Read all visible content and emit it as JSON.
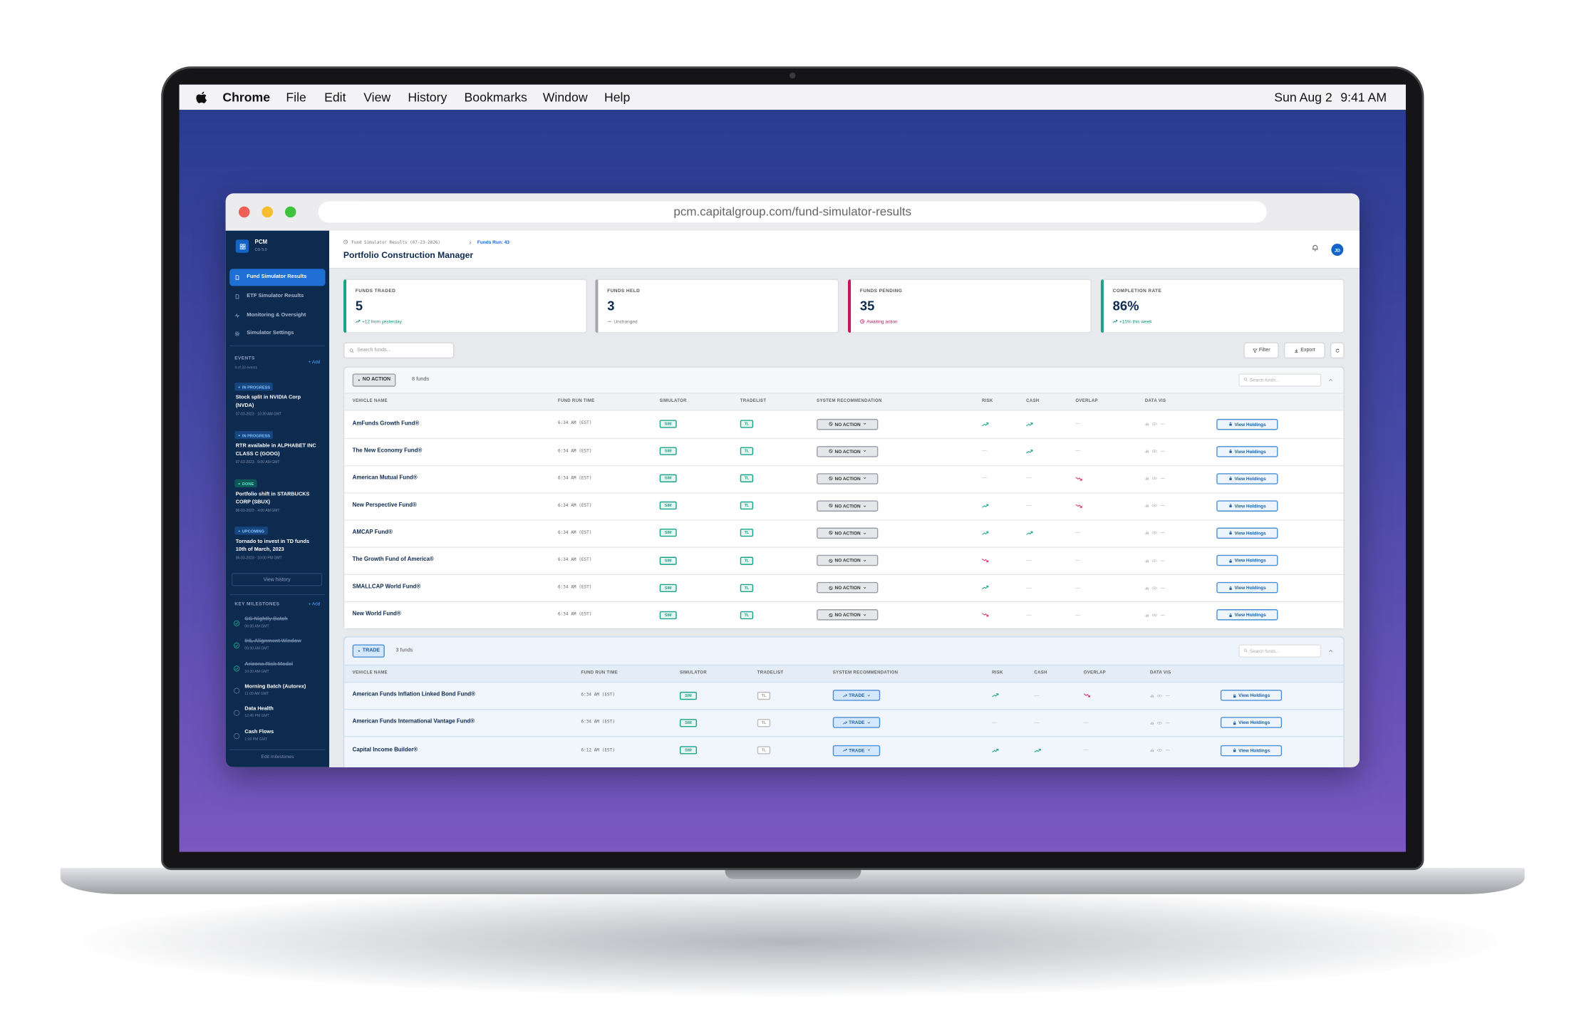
{
  "menubar": {
    "app": "Chrome",
    "menus": [
      "File",
      "Edit",
      "View",
      "History",
      "Bookmarks",
      "Window",
      "Help"
    ],
    "date": "Sun Aug 2",
    "time": "9:41 AM"
  },
  "browser": {
    "url": "pcm.capitalgroup.com/fund-simulator-results"
  },
  "sidebar": {
    "brand": "PCM",
    "version": "CG 5.0",
    "nav": [
      "Fund Simulator Results",
      "ETF Simulator Results",
      "Monitoring & Oversight",
      "Simulator Settings"
    ],
    "events": {
      "heading": "EVENTS",
      "add": "+ Add",
      "count": "4 of 33 events",
      "items": [
        {
          "status": "IN PROGRESS",
          "title": "Stock split in NVIDIA Corp (NVDA)",
          "date": "07-03-2023 · 10:30 AM GMT"
        },
        {
          "status": "IN PROGRESS",
          "title": "RTR available in ALPHABET INC CLASS C (GOOG)",
          "date": "07-03-2023 · 9:00 AM GMT"
        },
        {
          "status": "DONE",
          "title": "Portfolio shift in STARBUCKS CORP (SBUX)",
          "date": "06-03-2023 · 4:00 AM GMT"
        },
        {
          "status": "UPCOMING",
          "title": "Tornado to invest in TD funds 10th of March, 2023",
          "date": "06-03-2023 · 10:00 PM GMT"
        }
      ],
      "more": "View history"
    },
    "milestones": {
      "heading": "KEY MILESTONES",
      "add": "+ Add",
      "items": [
        {
          "title": "CG Nightly Batch",
          "time": "06:00 AM GMT",
          "done": true
        },
        {
          "title": "IHL Alignment Window",
          "time": "09:30 AM GMT",
          "done": true
        },
        {
          "title": "Arizona Risk Model",
          "time": "10:30 AM GMT",
          "done": true
        },
        {
          "title": "Morning Batch (Autorex)",
          "time": "11:00 AM GMT",
          "done": false
        },
        {
          "title": "Data Health",
          "time": "12:45 PM GMT",
          "done": false
        },
        {
          "title": "Cash Flows",
          "time": "1:00 PM GMT",
          "done": false
        }
      ],
      "edit": "Edit milestones"
    }
  },
  "header": {
    "breadcrumb": "Fund Simulator Results (07-23-2026)",
    "runs": "Funds Run: 43",
    "title": "Portfolio Construction Manager",
    "avatar": "JD"
  },
  "stats": [
    {
      "label": "FUNDS TRADED",
      "value": "5",
      "note": "+12 from yesterday",
      "tone": "up"
    },
    {
      "label": "FUNDS HELD",
      "value": "3",
      "note": "Unchanged",
      "tone": "flat"
    },
    {
      "label": "FUNDS PENDING",
      "value": "35",
      "note": "Awaiting action",
      "tone": "pending"
    },
    {
      "label": "COMPLETION RATE",
      "value": "86%",
      "note": "+15% this week",
      "tone": "up"
    }
  ],
  "toolbar": {
    "search": "Search funds...",
    "filter": "Filter",
    "export": "Export"
  },
  "groups": [
    {
      "badge": "NO ACTION",
      "count": "8 funds",
      "search": "Search funds...",
      "action": "View Holdings",
      "columns": [
        "VEHICLE NAME",
        "FUND RUN TIME",
        "SIMULATOR",
        "TRADELIST",
        "SYSTEM RECOMMENDATION",
        "RISK",
        "CASH",
        "OVERLAP",
        "DATA VIS"
      ],
      "rows": [
        {
          "name": "AmFunds Growth Fund®",
          "time": "6:34 AM (EST)",
          "simulator": "SIM",
          "tradelist": "TL",
          "recommendation": "NO ACTION",
          "risk": "up",
          "cash": "up",
          "overlap": "—"
        },
        {
          "name": "The New Economy Fund®",
          "time": "6:34 AM (EST)",
          "simulator": "SIM",
          "tradelist": "TL",
          "recommendation": "NO ACTION",
          "risk": "—",
          "cash": "up",
          "overlap": "—"
        },
        {
          "name": "American Mutual Fund®",
          "time": "6:34 AM (EST)",
          "simulator": "SIM",
          "tradelist": "TL",
          "recommendation": "NO ACTION",
          "risk": "—",
          "cash": "—",
          "overlap": "down"
        },
        {
          "name": "New Perspective Fund®",
          "time": "6:34 AM (EST)",
          "simulator": "SIM",
          "tradelist": "TL",
          "recommendation": "NO ACTION",
          "risk": "up",
          "cash": "—",
          "overlap": "down"
        },
        {
          "name": "AMCAP Fund®",
          "time": "6:34 AM (EST)",
          "simulator": "SIM",
          "tradelist": "TL",
          "recommendation": "NO ACTION",
          "risk": "up",
          "cash": "up",
          "overlap": "—"
        },
        {
          "name": "The Growth Fund of America®",
          "time": "6:34 AM (EST)",
          "simulator": "SIM",
          "tradelist": "TL",
          "recommendation": "NO ACTION",
          "risk": "down",
          "cash": "—",
          "overlap": "—"
        },
        {
          "name": "SMALLCAP World Fund®",
          "time": "6:34 AM (EST)",
          "simulator": "SIM",
          "tradelist": "TL",
          "recommendation": "NO ACTION",
          "risk": "up",
          "cash": "—",
          "overlap": "—"
        },
        {
          "name": "New World Fund®",
          "time": "6:34 AM (EST)",
          "simulator": "SIM",
          "tradelist": "TL",
          "recommendation": "NO ACTION",
          "risk": "down",
          "cash": "—",
          "overlap": "—"
        }
      ]
    },
    {
      "badge": "TRADE",
      "count": "3 funds",
      "search": "Search funds...",
      "action": "View Holdings",
      "columns": [
        "VEHICLE NAME",
        "FUND RUN TIME",
        "SIMULATOR",
        "TRADELIST",
        "SYSTEM RECOMMENDATION",
        "RISK",
        "CASH",
        "OVERLAP",
        "DATA VIS"
      ],
      "rows": [
        {
          "name": "American Funds Inflation Linked Bond Fund®",
          "time": "6:34 AM (EST)",
          "simulator": "SIM",
          "tradelist": "TL",
          "recommendation": "TRADE",
          "risk": "up",
          "cash": "—",
          "overlap": "down"
        },
        {
          "name": "American Funds International Vantage Fund®",
          "time": "6:34 AM (EST)",
          "simulator": "SIM",
          "tradelist": "TL",
          "recommendation": "TRADE",
          "risk": "—",
          "cash": "—",
          "overlap": "—"
        },
        {
          "name": "Capital Income Builder®",
          "time": "6:12 AM (EST)",
          "simulator": "SIM",
          "tradelist": "TL",
          "recommendation": "TRADE",
          "risk": "up",
          "cash": "up",
          "overlap": "—"
        }
      ]
    }
  ]
}
